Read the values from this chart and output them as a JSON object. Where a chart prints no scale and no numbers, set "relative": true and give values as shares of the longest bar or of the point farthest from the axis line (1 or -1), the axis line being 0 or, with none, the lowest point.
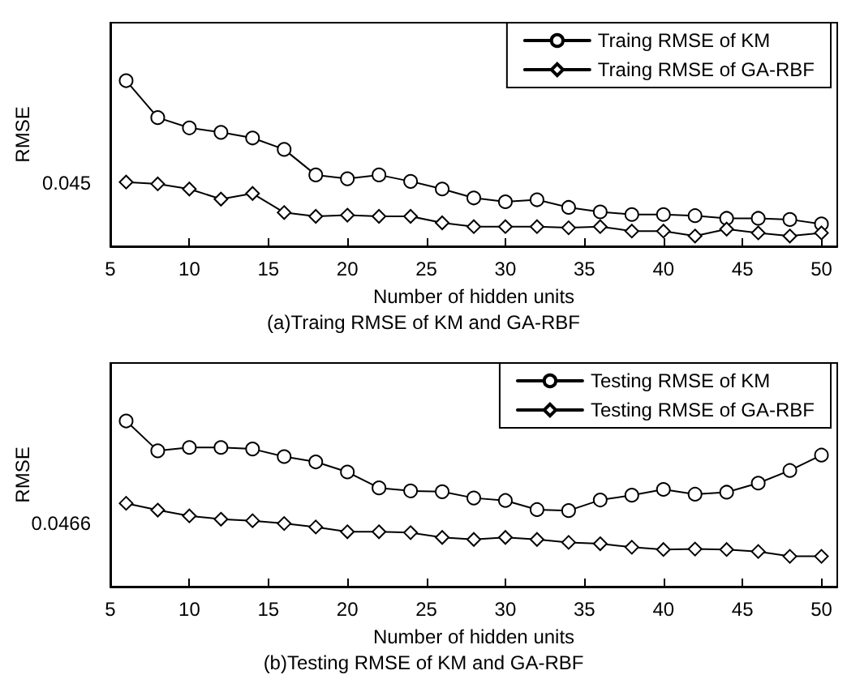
{
  "chart_data": [
    {
      "type": "line",
      "title": "(a)Traing RMSE of KM and GA-RBF",
      "xlabel": "Number of hidden units",
      "ylabel": "RMSE",
      "relative": true,
      "x": [
        6,
        8,
        10,
        12,
        14,
        16,
        18,
        20,
        22,
        24,
        26,
        28,
        30,
        32,
        34,
        36,
        38,
        40,
        42,
        44,
        46,
        48,
        50
      ],
      "xlim": [
        5,
        51
      ],
      "xticks": [
        5,
        10,
        15,
        20,
        25,
        30,
        35,
        40,
        45,
        50
      ],
      "annotations": [
        "0.045"
      ],
      "legend": "top right",
      "grid": false,
      "line_style": "solid",
      "series": [
        {
          "name": "Traing RMSE of KM",
          "color": "#000000",
          "marker": "circle",
          "values": [
            1,
            0.777,
            0.715,
            0.688,
            0.654,
            0.585,
            0.431,
            0.408,
            0.431,
            0.392,
            0.346,
            0.292,
            0.269,
            0.281,
            0.235,
            0.208,
            0.192,
            0.192,
            0.185,
            0.169,
            0.169,
            0.162,
            0.135
          ]
        },
        {
          "name": "Traing RMSE of GA-RBF",
          "color": "#000000",
          "marker": "diamond",
          "values": [
            0.388,
            0.377,
            0.346,
            0.285,
            0.319,
            0.204,
            0.181,
            0.188,
            0.181,
            0.181,
            0.142,
            0.119,
            0.119,
            0.119,
            0.112,
            0.119,
            0.092,
            0.092,
            0.062,
            0.104,
            0.081,
            0.062,
            0.081
          ]
        }
      ]
    },
    {
      "type": "line",
      "title": "(b)Testing RMSE of KM and GA-RBF",
      "xlabel": "Number of hidden units",
      "ylabel": "RMSE",
      "relative": true,
      "x": [
        6,
        8,
        10,
        12,
        14,
        16,
        18,
        20,
        22,
        24,
        26,
        28,
        30,
        32,
        34,
        36,
        38,
        40,
        42,
        44,
        46,
        48,
        50
      ],
      "xlim": [
        5,
        51
      ],
      "xticks": [
        5,
        10,
        15,
        20,
        25,
        30,
        35,
        40,
        45,
        50
      ],
      "annotations": [
        "0.0466"
      ],
      "legend": "top right",
      "grid": false,
      "line_style": "solid",
      "series": [
        {
          "name": "Testing RMSE of KM",
          "color": "#000000",
          "marker": "circle",
          "values": [
            1,
            0.82,
            0.84,
            0.84,
            0.831,
            0.785,
            0.753,
            0.692,
            0.596,
            0.578,
            0.573,
            0.535,
            0.52,
            0.465,
            0.459,
            0.523,
            0.552,
            0.587,
            0.558,
            0.57,
            0.625,
            0.701,
            0.794
          ]
        },
        {
          "name": "Testing RMSE of GA-RBF",
          "color": "#000000",
          "marker": "diamond",
          "values": [
            0.503,
            0.462,
            0.427,
            0.407,
            0.398,
            0.381,
            0.36,
            0.331,
            0.331,
            0.326,
            0.297,
            0.285,
            0.297,
            0.285,
            0.267,
            0.259,
            0.238,
            0.224,
            0.227,
            0.224,
            0.212,
            0.183,
            0.183
          ]
        }
      ]
    }
  ]
}
